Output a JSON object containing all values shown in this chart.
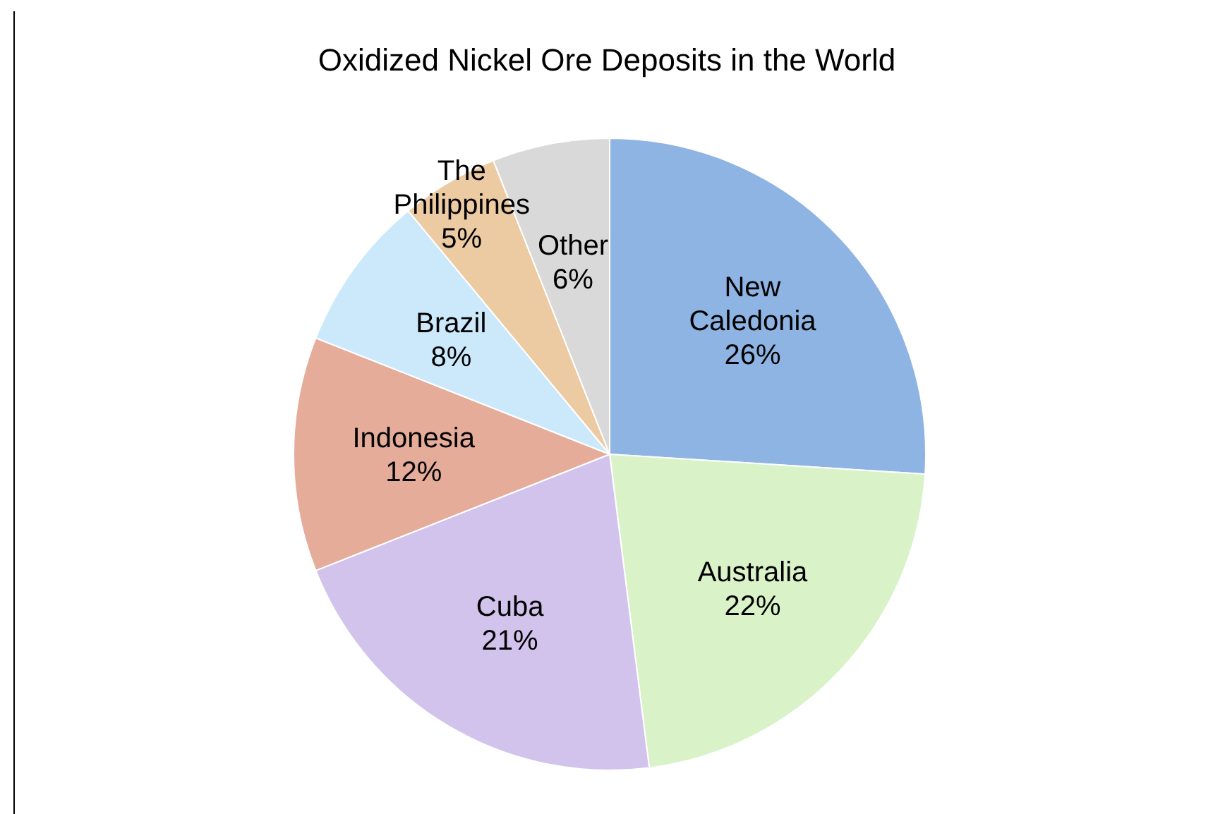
{
  "chart_data": {
    "type": "pie",
    "title": "Oxidized Nickel Ore Deposits in the World",
    "categories": [
      "New Caledonia",
      "Australia",
      "Cuba",
      "Indonesia",
      "Brazil",
      "The Philippines",
      "Other"
    ],
    "values": [
      26,
      22,
      21,
      12,
      8,
      5,
      6
    ],
    "colors": [
      "#8eb4e3",
      "#d9f2c8",
      "#d2c3ec",
      "#e6ac9a",
      "#cce9fb",
      "#eccaa2",
      "#d9d9d9"
    ],
    "value_labels": [
      "26%",
      "22%",
      "21%",
      "12%",
      "8%",
      "5%",
      "6%"
    ]
  }
}
